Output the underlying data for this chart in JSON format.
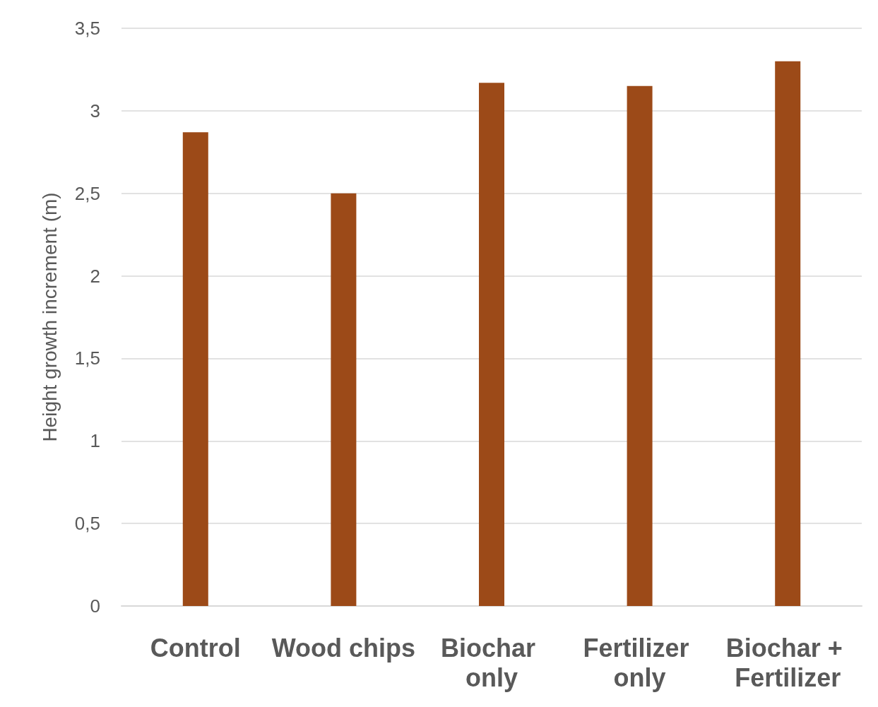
{
  "chart_data": {
    "type": "bar",
    "ylabel": "Height growth increment (m)",
    "categories": [
      "Control",
      "Wood chips",
      "Biochar only",
      "Fertilizer only",
      "Biochar + Fertilizer"
    ],
    "values": [
      2.87,
      2.5,
      3.17,
      3.15,
      3.3
    ],
    "color": "#9c4a18",
    "ylim": [
      0,
      3.5
    ],
    "yticks": [
      0,
      {
        "value": 0.5,
        "label": "0,5"
      },
      1,
      {
        "value": 1.5,
        "label": "1,5"
      },
      2,
      {
        "value": 2.5,
        "label": "2,5"
      },
      3,
      {
        "value": 3.5,
        "label": "3,5"
      }
    ],
    "grid": "y"
  }
}
